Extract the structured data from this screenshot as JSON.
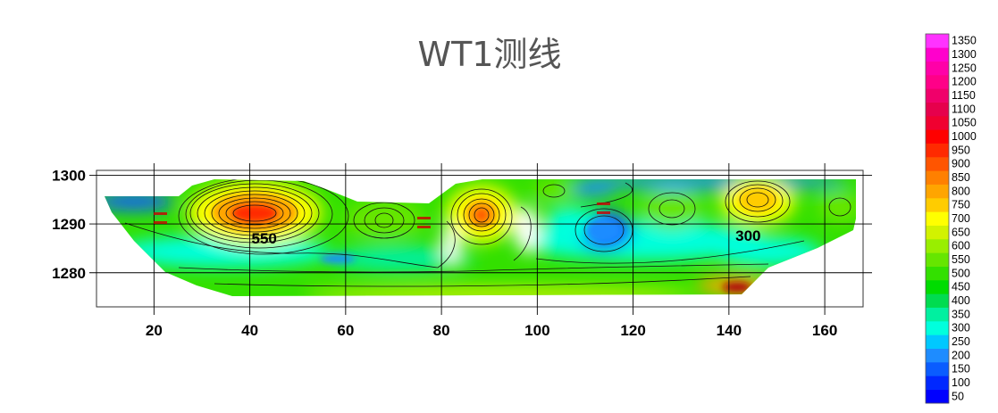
{
  "chart_data": {
    "type": "contour",
    "title": "WT1测线",
    "xlabel": "",
    "ylabel": "",
    "xlim": [
      8,
      168
    ],
    "ylim": [
      1273,
      1301
    ],
    "x_ticks": [
      20,
      40,
      60,
      80,
      100,
      120,
      140,
      160
    ],
    "y_ticks": [
      1280,
      1290,
      1300
    ],
    "grid": true,
    "contour_levels": [
      50,
      100,
      150,
      200,
      250,
      300,
      350,
      400,
      450,
      500,
      550,
      600,
      650,
      700,
      750,
      800,
      850,
      900,
      950,
      1000,
      1050,
      1100,
      1150,
      1200,
      1250,
      1300,
      1350
    ],
    "colorbar": {
      "labels": [
        50,
        100,
        150,
        200,
        250,
        300,
        350,
        400,
        450,
        500,
        550,
        600,
        650,
        700,
        750,
        800,
        850,
        900,
        950,
        1000,
        1050,
        1100,
        1150,
        1200,
        1250,
        1300,
        1350
      ],
      "colors": [
        "#0000ff",
        "#0028ff",
        "#0a5cff",
        "#1e8cff",
        "#00c8ff",
        "#00ffdd",
        "#00f0a0",
        "#00dc50",
        "#00dc00",
        "#33e000",
        "#66e600",
        "#99ee00",
        "#d2f200",
        "#ffff00",
        "#ffcc00",
        "#ffa500",
        "#ff8000",
        "#ff5500",
        "#ff2a00",
        "#ff0000",
        "#f00030",
        "#e6004c",
        "#f0006a",
        "#ff0088",
        "#ff00a8",
        "#ff00cc",
        "#ff33ff"
      ]
    },
    "annotations": [
      {
        "text": "550",
        "x": 43,
        "y": 1286
      },
      {
        "text": "300",
        "x": 144,
        "y": 1286.5
      }
    ],
    "series": [
      {
        "name": "",
        "values": [
          {
            "x": 40,
            "y": 1291.5,
            "v": 950
          },
          {
            "x": 88,
            "y": 1291,
            "v": 800
          },
          {
            "x": 145,
            "y": 1294.5,
            "v": 750
          },
          {
            "x": 67,
            "y": 1290,
            "v": 550
          },
          {
            "x": 103,
            "y": 1296.5,
            "v": 450
          },
          {
            "x": 126,
            "y": 1293,
            "v": 500
          },
          {
            "x": 163,
            "y": 1293,
            "v": 450
          },
          {
            "x": 112,
            "y": 1289,
            "v": 150
          },
          {
            "x": 62,
            "y": 1282.5,
            "v": 200
          },
          {
            "x": 15,
            "y": 1294.5,
            "v": 100
          },
          {
            "x": 143,
            "y": 1275.5,
            "v": 1350
          }
        ]
      }
    ]
  }
}
